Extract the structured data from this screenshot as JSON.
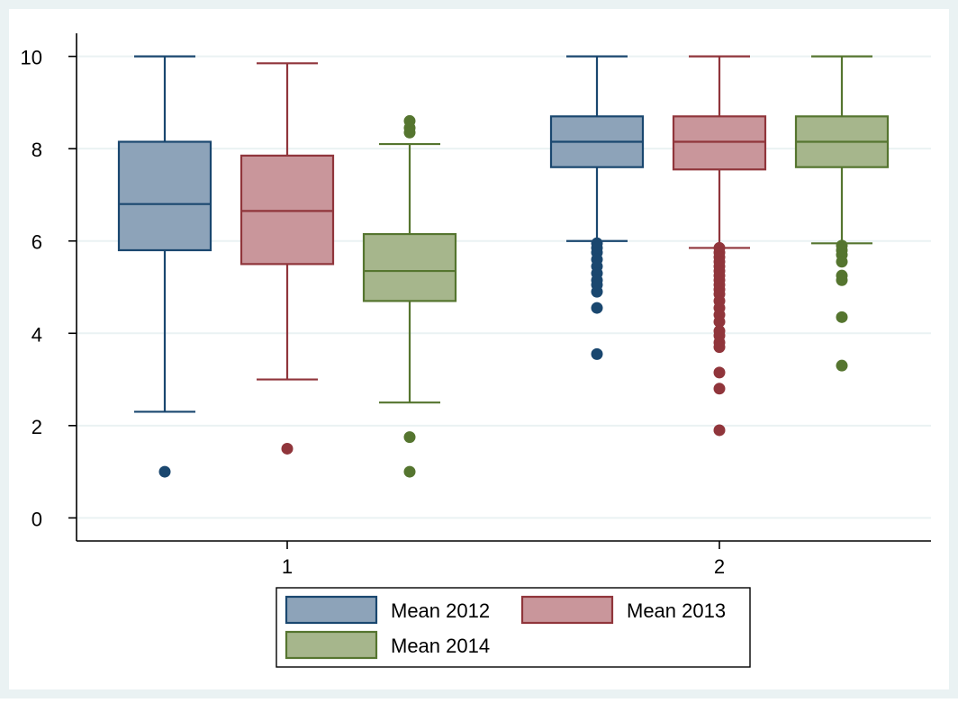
{
  "colors": {
    "outer_background": "#eaf2f3",
    "plot_background": "#ffffff",
    "gridline": "#eaf2f3",
    "axis": "#000000"
  },
  "chart_data": {
    "type": "box",
    "title": "",
    "xlabel": "",
    "ylabel": "",
    "categories": [
      "1",
      "2"
    ],
    "ylim": [
      -0.5,
      10.5
    ],
    "yticks": [
      0,
      2,
      4,
      6,
      8,
      10
    ],
    "grid": true,
    "legend_position": "bottom",
    "series": [
      {
        "name": "Mean 2012",
        "fill": "#8da3b9",
        "stroke": "#1a476f",
        "boxes": [
          {
            "category": "1",
            "min": 2.3,
            "q1": 5.8,
            "median": 6.8,
            "q3": 8.15,
            "max": 10.0,
            "outliers": [
              1.0
            ]
          },
          {
            "category": "2",
            "min": 6.0,
            "q1": 7.6,
            "median": 8.15,
            "q3": 8.7,
            "max": 10.0,
            "outliers": [
              5.95,
              5.85,
              5.75,
              5.6,
              5.45,
              5.3,
              5.15,
              5.05,
              4.9,
              4.55,
              3.55
            ]
          }
        ]
      },
      {
        "name": "Mean 2013",
        "fill": "#c9969b",
        "stroke": "#90353b",
        "boxes": [
          {
            "category": "1",
            "min": 3.0,
            "q1": 5.5,
            "median": 6.65,
            "q3": 7.85,
            "max": 9.85,
            "outliers": [
              1.5
            ]
          },
          {
            "category": "2",
            "min": 5.85,
            "q1": 7.55,
            "median": 8.15,
            "q3": 8.7,
            "max": 10.0,
            "outliers": [
              5.85,
              5.75,
              5.65,
              5.55,
              5.45,
              5.35,
              5.25,
              5.15,
              5.05,
              4.95,
              4.85,
              4.7,
              4.55,
              4.4,
              4.25,
              4.05,
              3.95,
              3.8,
              3.7,
              3.15,
              2.8,
              1.9
            ]
          }
        ]
      },
      {
        "name": "Mean 2014",
        "fill": "#a6b68c",
        "stroke": "#55752f",
        "boxes": [
          {
            "category": "1",
            "min": 2.5,
            "q1": 4.7,
            "median": 5.35,
            "q3": 6.15,
            "max": 8.1,
            "outliers": [
              8.6,
              8.45,
              8.35,
              1.75,
              1.0
            ]
          },
          {
            "category": "2",
            "min": 5.95,
            "q1": 7.6,
            "median": 8.15,
            "q3": 8.7,
            "max": 10.0,
            "outliers": [
              5.9,
              5.8,
              5.7,
              5.55,
              5.25,
              5.15,
              4.35,
              3.3
            ]
          }
        ]
      }
    ]
  }
}
